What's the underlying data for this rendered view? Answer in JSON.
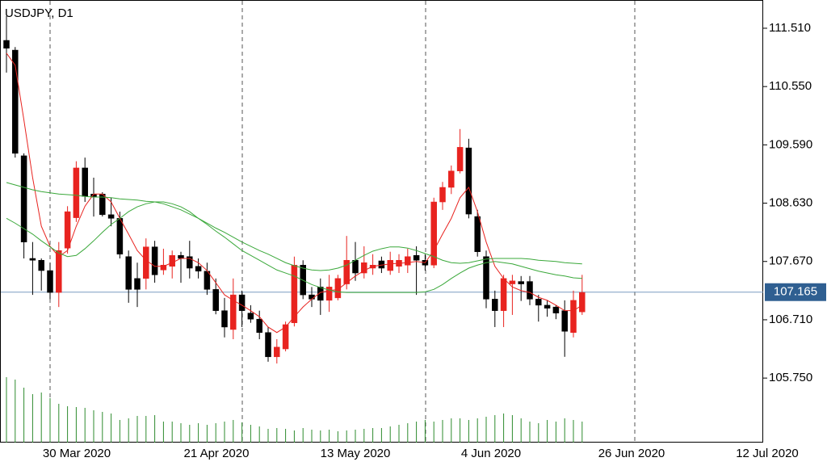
{
  "chart_data": {
    "type": "candlestick",
    "title": "USDJPY, D1",
    "x_labels": [
      "30 Mar 2020",
      "21 Apr 2020",
      "13 May 2020",
      "4 Jun 2020",
      "26 Jun 2020",
      "12 Jul 2020"
    ],
    "open": [
      111.31,
      111.15,
      109.41,
      107.72,
      107.69,
      107.52,
      107.16,
      107.89,
      108.39,
      109.21,
      108.78,
      108.78,
      108.44,
      108.38,
      107.75,
      107.39,
      107.39,
      107.91,
      107.53,
      107.59,
      107.77,
      107.75,
      107.59,
      107.51,
      107.21,
      106.86,
      106.55,
      107.12,
      106.82,
      106.72,
      106.5,
      106.1,
      106.23,
      106.66,
      107.61,
      107.12,
      107.25,
      107.03,
      107.07,
      107.3,
      107.69,
      107.48,
      107.56,
      107.68,
      107.52,
      107.59,
      107.61,
      107.77,
      107.69,
      107.61,
      108.65,
      108.89,
      109.16,
      109.54,
      108.41,
      107.75,
      107.05,
      106.86,
      107.3,
      107.34,
      107.34,
      107.05,
      106.95,
      106.92,
      106.86,
      106.5,
      106.84
    ],
    "high": [
      111.71,
      111.2,
      109.45,
      107.99,
      107.72,
      107.65,
      107.99,
      108.58,
      109.32,
      109.38,
      109.05,
      108.81,
      108.72,
      108.49,
      107.85,
      107.65,
      108.05,
      108.01,
      107.88,
      107.85,
      107.83,
      108.01,
      107.72,
      107.65,
      107.39,
      107.07,
      107.39,
      107.19,
      106.95,
      106.86,
      106.59,
      106.39,
      106.68,
      107.75,
      107.69,
      107.25,
      107.39,
      107.45,
      107.45,
      108.09,
      107.99,
      107.92,
      107.79,
      107.75,
      107.83,
      107.79,
      107.88,
      107.92,
      107.79,
      108.72,
      108.98,
      109.25,
      109.85,
      109.69,
      108.52,
      107.85,
      107.19,
      107.45,
      107.45,
      107.43,
      107.43,
      107.12,
      107.03,
      106.95,
      107.03,
      107.19,
      107.45
    ],
    "low": [
      110.78,
      109.38,
      107.72,
      107.12,
      107.19,
      107.05,
      106.92,
      107.8,
      108.32,
      108.65,
      108.41,
      108.41,
      108.25,
      107.72,
      106.99,
      106.92,
      107.21,
      107.32,
      107.45,
      107.39,
      107.32,
      107.39,
      107.39,
      107.12,
      106.8,
      106.42,
      106.39,
      106.59,
      106.66,
      106.39,
      106.02,
      105.99,
      106.19,
      106.6,
      107.05,
      106.92,
      106.79,
      106.84,
      107.03,
      107.21,
      107.35,
      107.39,
      107.45,
      107.48,
      107.45,
      107.48,
      107.48,
      107.12,
      107.52,
      107.56,
      108.52,
      108.78,
      109.12,
      108.38,
      107.75,
      106.9,
      106.59,
      106.59,
      106.79,
      107.02,
      106.95,
      106.68,
      106.76,
      106.72,
      106.1,
      106.42,
      106.79
    ],
    "close": [
      111.18,
      109.45,
      107.99,
      107.69,
      107.52,
      107.16,
      107.85,
      108.49,
      109.21,
      108.74,
      108.73,
      108.44,
      108.38,
      107.79,
      107.21,
      107.21,
      107.91,
      107.45,
      107.61,
      107.77,
      107.72,
      107.56,
      107.51,
      107.21,
      106.86,
      106.59,
      107.12,
      106.86,
      106.72,
      106.5,
      106.1,
      106.26,
      106.63,
      107.61,
      107.12,
      107.05,
      107.03,
      107.25,
      107.39,
      107.69,
      107.48,
      107.65,
      107.61,
      107.56,
      107.69,
      107.69,
      107.75,
      107.69,
      107.61,
      108.65,
      108.89,
      109.16,
      109.55,
      108.45,
      107.83,
      107.05,
      106.86,
      107.39,
      107.35,
      107.3,
      107.05,
      106.95,
      106.9,
      106.82,
      106.52,
      107.03,
      107.16
    ],
    "up_color": "#e8231f",
    "down_color": "#000000",
    "moving_averages": [
      {
        "color": "#e8231f",
        "values": [
          111.1,
          110.9,
          110.0,
          109.05,
          108.25,
          107.92,
          107.75,
          107.85,
          108.25,
          108.58,
          108.78,
          108.78,
          108.65,
          108.38,
          108.12,
          107.85,
          107.69,
          107.59,
          107.59,
          107.65,
          107.72,
          107.72,
          107.65,
          107.52,
          107.32,
          107.12,
          107.03,
          106.95,
          106.86,
          106.76,
          106.59,
          106.5,
          106.59,
          106.76,
          106.92,
          107.05,
          107.16,
          107.19,
          107.21,
          107.32,
          107.43,
          107.52,
          107.59,
          107.61,
          107.63,
          107.64,
          107.65,
          107.67,
          107.65,
          107.85,
          108.12,
          108.38,
          108.72,
          108.89,
          108.49,
          107.99,
          107.59,
          107.39,
          107.25,
          107.19,
          107.16,
          107.08,
          107.03,
          106.95,
          106.86,
          106.86,
          106.95
        ]
      },
      {
        "color": "#3aa83a",
        "values": [
          108.38,
          108.3,
          108.21,
          108.12,
          108.01,
          107.91,
          107.81,
          107.75,
          107.77,
          107.88,
          108.01,
          108.15,
          108.28,
          108.38,
          108.49,
          108.57,
          108.62,
          108.65,
          108.65,
          108.62,
          108.57,
          108.49,
          108.38,
          108.28,
          108.17,
          108.07,
          107.96,
          107.85,
          107.77,
          107.69,
          107.61,
          107.53,
          107.48,
          107.43,
          107.36,
          107.29,
          107.24,
          107.2,
          107.17,
          107.16,
          107.16,
          107.16,
          107.16,
          107.16,
          107.16,
          107.16,
          107.16,
          107.16,
          107.17,
          107.21,
          107.29,
          107.39,
          107.48,
          107.56,
          107.61,
          107.65,
          107.67,
          107.65,
          107.63,
          107.59,
          107.55,
          107.51,
          107.48,
          107.45,
          107.43,
          107.4,
          107.39
        ]
      },
      {
        "color": "#3aa83a",
        "values": [
          108.97,
          108.93,
          108.89,
          108.85,
          108.82,
          108.8,
          108.78,
          108.77,
          108.76,
          108.74,
          108.73,
          108.73,
          108.72,
          108.7,
          108.69,
          108.68,
          108.66,
          108.65,
          108.62,
          108.57,
          108.52,
          108.45,
          108.38,
          108.3,
          108.22,
          108.15,
          108.07,
          107.99,
          107.92,
          107.85,
          107.79,
          107.72,
          107.65,
          107.6,
          107.56,
          107.53,
          107.52,
          107.53,
          107.56,
          107.61,
          107.69,
          107.77,
          107.84,
          107.88,
          107.91,
          107.91,
          107.89,
          107.85,
          107.8,
          107.75,
          107.69,
          107.65,
          107.64,
          107.65,
          107.68,
          107.71,
          107.72,
          107.72,
          107.72,
          107.72,
          107.71,
          107.69,
          107.68,
          107.67,
          107.65,
          107.64,
          107.63
        ]
      }
    ],
    "volume": {
      "color": "#2e8b2e",
      "values": [
        81,
        78,
        68,
        60,
        62,
        55,
        48,
        45,
        44,
        43,
        40,
        38,
        36,
        28,
        30,
        33,
        33,
        34,
        26,
        26,
        24,
        22,
        24,
        22,
        24,
        26,
        28,
        25,
        22,
        20,
        17,
        18,
        17,
        15,
        18,
        16,
        15,
        16,
        14,
        15,
        16,
        17,
        18,
        18,
        20,
        22,
        24,
        26,
        28,
        26,
        28,
        30,
        30,
        28,
        30,
        32,
        34,
        36,
        34,
        30,
        26,
        24,
        28,
        26,
        30,
        28,
        26
      ]
    },
    "current_price": 107.165,
    "current_price_color": "#2f5f91",
    "ylim": [
      104.688,
      111.975
    ],
    "yticks": [
      {
        "value": 111.51,
        "label": "111.510"
      },
      {
        "value": 110.55,
        "label": "110.550"
      },
      {
        "value": 109.59,
        "label": "109.590"
      },
      {
        "value": 108.63,
        "label": "108.630"
      },
      {
        "value": 107.67,
        "label": "107.670"
      },
      {
        "value": 106.71,
        "label": "106.710"
      },
      {
        "value": 105.75,
        "label": "105.750"
      }
    ]
  }
}
